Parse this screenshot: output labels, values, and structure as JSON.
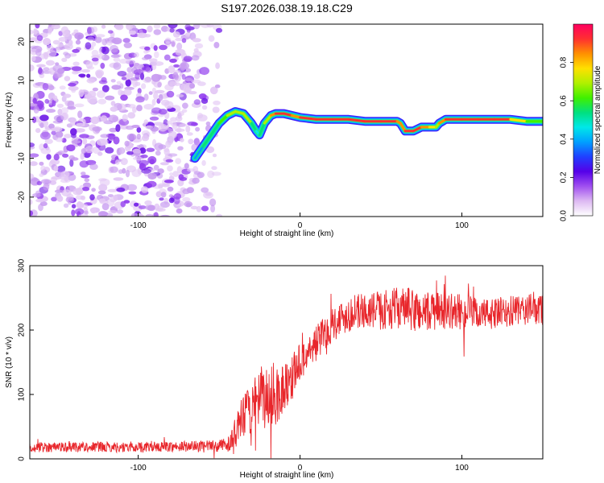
{
  "figure_title": "S197.2026.038.19.18.C29",
  "chart_data": [
    {
      "type": "heatmap",
      "title": "S197.2026.038.19.18.C29",
      "xlabel": "Height of straight line (km)",
      "ylabel": "Frequency (Hz)",
      "xlim": [
        -167,
        150
      ],
      "ylim": [
        -25,
        24.5
      ],
      "x_ticks": [
        -100,
        0,
        100
      ],
      "y_ticks": [
        -20,
        -10,
        0,
        10,
        20
      ],
      "colorbar": {
        "label": "Normalized spectral amplitude",
        "range": [
          0,
          1
        ],
        "ticks": [
          "0.0",
          "0.2",
          "0.4",
          "0.6",
          "0.8"
        ],
        "colors": [
          "#ffffff",
          "#ddb9f2",
          "#a04ff0",
          "#5500e8",
          "#2040ff",
          "#00a0ff",
          "#00e8e8",
          "#00e080",
          "#40f000",
          "#b0f000",
          "#ffe000",
          "#ff9000",
          "#ff3030",
          "#ff0060"
        ]
      },
      "noise_region_x": [
        -167,
        -50
      ],
      "ridge": {
        "x": [
          -65,
          -60,
          -55,
          -50,
          -45,
          -40,
          -35,
          -30,
          -27,
          -25,
          -22,
          -18,
          -15,
          -10,
          -5,
          0,
          10,
          20,
          30,
          40,
          50,
          60,
          62,
          65,
          70,
          75,
          80,
          84,
          86,
          90,
          100,
          110,
          120,
          130,
          140,
          150
        ],
        "freq": [
          -10,
          -7,
          -4,
          -1,
          1,
          2,
          1.5,
          -1,
          -3,
          -4,
          -1,
          1,
          1.5,
          1.5,
          1,
          0.5,
          0,
          0,
          0,
          -0.5,
          -0.5,
          -0.5,
          -1,
          -3,
          -3,
          -2,
          -2,
          -2,
          -1,
          0,
          0,
          0,
          0,
          0,
          -0.5,
          -0.5
        ],
        "amplitude": [
          0.35,
          0.45,
          0.55,
          0.6,
          0.7,
          0.72,
          0.7,
          0.65,
          0.5,
          0.4,
          0.6,
          0.85,
          0.9,
          0.9,
          0.88,
          0.85,
          0.95,
          0.92,
          0.9,
          0.88,
          0.9,
          0.9,
          0.85,
          0.9,
          0.92,
          0.85,
          0.9,
          0.6,
          0.8,
          0.95,
          0.97,
          0.95,
          0.97,
          0.9,
          0.7,
          0.6
        ]
      }
    },
    {
      "type": "line",
      "xlabel": "Height of straight line (km)",
      "ylabel": "SNR (10 * v/v)",
      "xlim": [
        -167,
        150
      ],
      "ylim": [
        0,
        300
      ],
      "x_ticks": [
        -100,
        0,
        100
      ],
      "y_ticks": [
        0,
        100,
        200,
        300
      ],
      "series": [
        {
          "name": "SNR",
          "color": "#e8262b",
          "trend_x": [
            -167,
            -140,
            -110,
            -80,
            -50,
            -43,
            -40,
            -36,
            -30,
            -25,
            -20,
            -15,
            -10,
            -5,
            0,
            5,
            10,
            15,
            20,
            30,
            40,
            50,
            60,
            70,
            80,
            90,
            100,
            110,
            120,
            130,
            140,
            150
          ],
          "trend_y": [
            18,
            19,
            18,
            19,
            20,
            25,
            40,
            60,
            80,
            90,
            95,
            100,
            110,
            130,
            150,
            165,
            180,
            195,
            210,
            225,
            230,
            230,
            235,
            230,
            228,
            230,
            228,
            225,
            225,
            228,
            232,
            232
          ],
          "noise_amplitude": [
            8,
            8,
            8,
            8,
            9,
            12,
            25,
            35,
            40,
            45,
            50,
            55,
            40,
            35,
            30,
            30,
            28,
            28,
            28,
            28,
            28,
            30,
            32,
            35,
            32,
            28,
            28,
            25,
            25,
            25,
            25,
            25
          ]
        }
      ]
    }
  ]
}
